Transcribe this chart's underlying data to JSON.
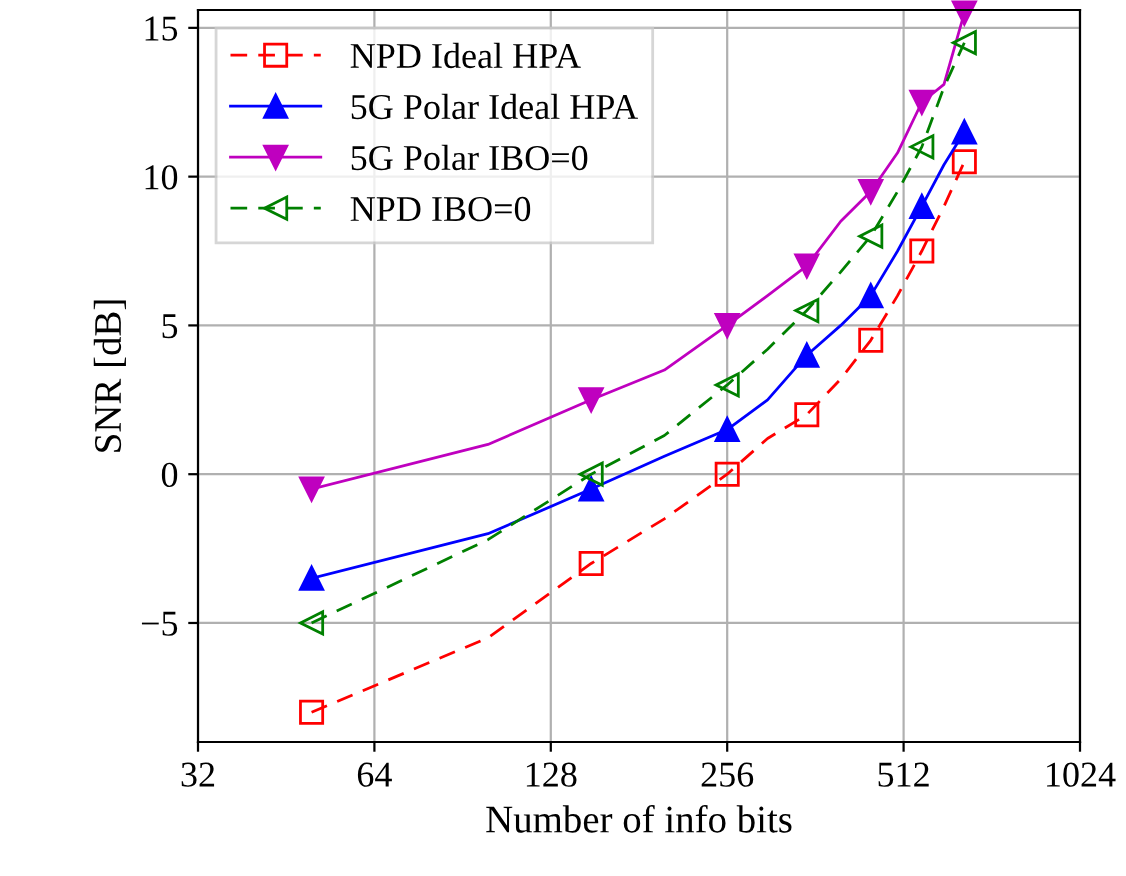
{
  "chart_data": {
    "type": "line",
    "xlabel": "Number of info bits",
    "ylabel": "SNR [dB]",
    "log": "x",
    "x": [
      50,
      100,
      150,
      200,
      256,
      300,
      350,
      400,
      450,
      500,
      550,
      600,
      650
    ],
    "xlim": [
      32,
      1024
    ],
    "xticks": [
      32,
      64,
      128,
      256,
      512,
      1024
    ],
    "ylim": [
      -9,
      15.6
    ],
    "yticks": [
      {
        "value": -5,
        "label": "−5"
      },
      0,
      5,
      10,
      15
    ],
    "grid": true,
    "legend": "top left",
    "series": [
      {
        "name": "NPD Ideal HPA",
        "color": "#ff0000",
        "marker": "square",
        "line_style": "dashed",
        "values": [
          -8,
          -5.5,
          -3,
          -1.5,
          0,
          1.2,
          2,
          3.2,
          4.5,
          6,
          7.5,
          9,
          10.5
        ]
      },
      {
        "name": "5G Polar Ideal HPA",
        "color": "#0000ff",
        "marker": "triangle",
        "line_style": "solid",
        "values": [
          -3.5,
          -2,
          -0.5,
          0.6,
          1.5,
          2.5,
          4,
          5,
          6,
          7.5,
          9,
          10.4,
          11.5
        ]
      },
      {
        "name": "5G Polar IBO=0",
        "color": "#bf00bf",
        "marker": "triangle_down",
        "line_style": "solid",
        "values": [
          -0.5,
          1,
          2.5,
          3.5,
          5,
          6,
          7,
          8.5,
          9.5,
          10.8,
          12.5,
          13.1,
          15.5
        ]
      },
      {
        "name": "NPD IBO=0",
        "color": "#008000",
        "marker": "triangle_left",
        "line_style": "dashed",
        "values": [
          -5,
          -2.2,
          0,
          1.3,
          3,
          4.2,
          5.5,
          6.8,
          8,
          9.5,
          11,
          13,
          14.5
        ]
      }
    ]
  }
}
